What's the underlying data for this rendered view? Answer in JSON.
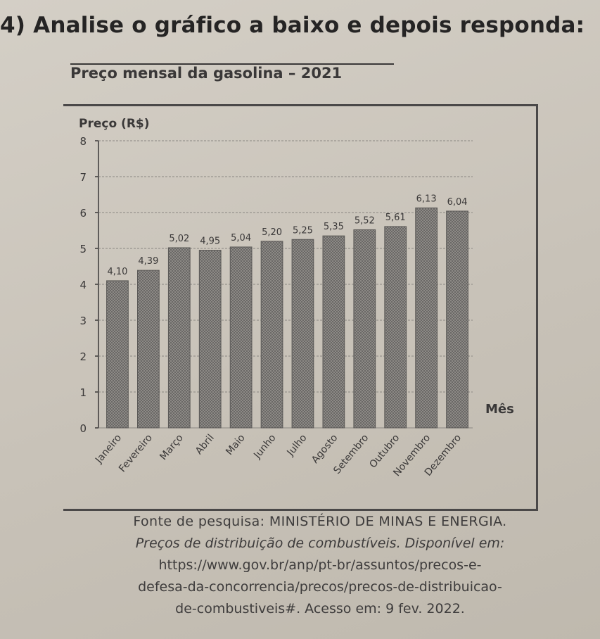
{
  "question": "4) Analise o gráfico a baixo e depois responda:",
  "chart_data": {
    "type": "bar",
    "title": "Preço mensal da gasolina – 2021",
    "ylabel": "Preço (R$)",
    "xlabel": "Mês",
    "ylim": [
      0,
      8
    ],
    "yticks": [
      "0",
      "1",
      "2",
      "3",
      "4",
      "5",
      "6",
      "7",
      "8"
    ],
    "grid": true,
    "categories": [
      "Janeiro",
      "Fevereiro",
      "Março",
      "Abril",
      "Maio",
      "Junho",
      "Julho",
      "Agosto",
      "Setembro",
      "Outubro",
      "Novembro",
      "Dezembro"
    ],
    "values": [
      4.1,
      4.39,
      5.02,
      4.95,
      5.04,
      5.2,
      5.25,
      5.35,
      5.52,
      5.61,
      6.13,
      6.04
    ],
    "data_labels": [
      "4,10",
      "4,39",
      "5,02",
      "4,95",
      "5,04",
      "5,20",
      "5,25",
      "5,35",
      "5,52",
      "5,61",
      "6,13",
      "6,04"
    ],
    "colors": {
      "bar": "#6e6c6a",
      "bar_light": "#a8a6a2",
      "grid": "#8a8782",
      "axis": "#3a3838"
    }
  },
  "source": {
    "line1": "Fonte de pesquisa: MINISTÉRIO DE MINAS E ENERGIA.",
    "line2": "Preços de distribuição de combustíveis. Disponível em:",
    "line3": "https://www.gov.br/anp/pt-br/assuntos/precos-e-",
    "line4": "defesa-da-concorrencia/precos/precos-de-distribuicao-",
    "line5": "de-combustiveis#. Acesso em: 9 fev. 2022."
  }
}
